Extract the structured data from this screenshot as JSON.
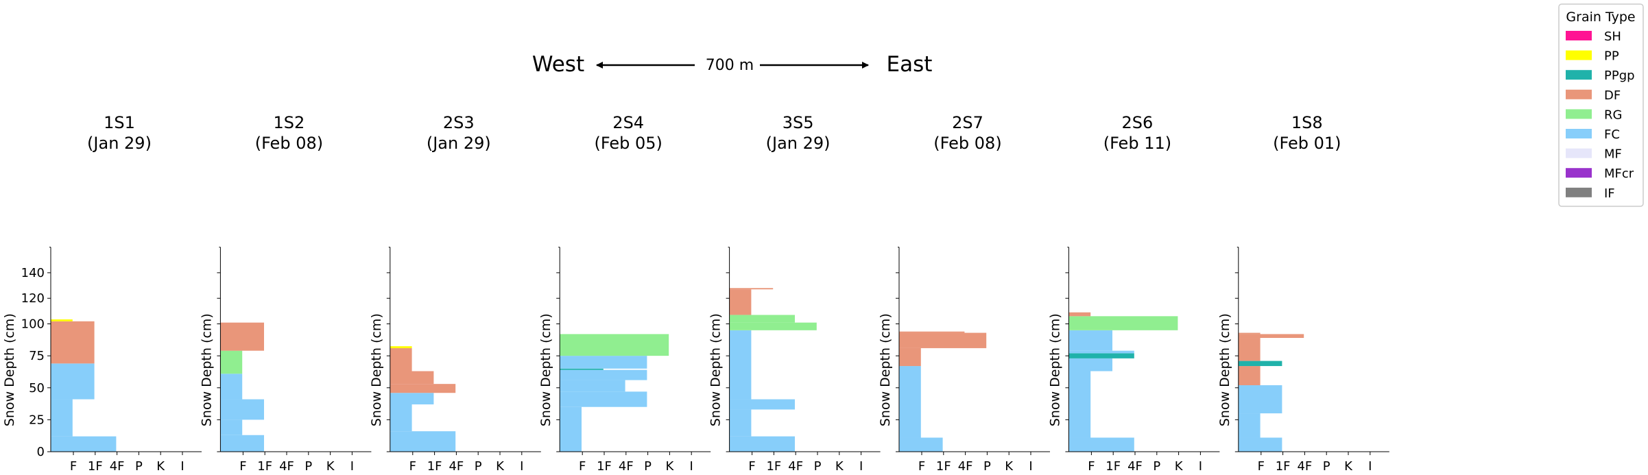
{
  "header": {
    "west": "West",
    "east": "East",
    "distance": "700 m"
  },
  "legend": {
    "title": "Grain Type",
    "items": [
      {
        "label": "SH",
        "color": "#FF1493"
      },
      {
        "label": "PP",
        "color": "#FFFF00"
      },
      {
        "label": "PPgp",
        "color": "#20B2AA"
      },
      {
        "label": "DF",
        "color": "#E9967A"
      },
      {
        "label": "RG",
        "color": "#90EE90"
      },
      {
        "label": "FC",
        "color": "#87CEFA"
      },
      {
        "label": "MF",
        "color": "#E6E6FA"
      },
      {
        "label": "MFcr",
        "color": "#9932CC"
      },
      {
        "label": "IF",
        "color": "#808080"
      }
    ]
  },
  "chart_data": {
    "type": "bar",
    "orientation": "horizontal",
    "ylabel": "Snow Depth (cm)",
    "ylim": [
      0,
      160
    ],
    "yticks": [
      0,
      25,
      50,
      75,
      100,
      120,
      140
    ],
    "xticks": [
      "F",
      "1F",
      "4F",
      "P",
      "K",
      "I"
    ],
    "hardness_scale": {
      "F": 1,
      "1F": 2,
      "4F": 3,
      "P": 4,
      "K": 5,
      "I": 6
    },
    "panels": [
      {
        "name": "1S1",
        "date": "(Jan 29)",
        "layers": [
          {
            "bottom": 0,
            "top": 12,
            "hardness": 3,
            "grain": "FC"
          },
          {
            "bottom": 12,
            "top": 41,
            "hardness": 1,
            "grain": "FC"
          },
          {
            "bottom": 41,
            "top": 69,
            "hardness": 2,
            "grain": "FC"
          },
          {
            "bottom": 69,
            "top": 102,
            "hardness": 2,
            "grain": "DF"
          },
          {
            "bottom": 102,
            "top": 103.5,
            "hardness": 1,
            "grain": "PP"
          }
        ]
      },
      {
        "name": "1S2",
        "date": "(Feb 08)",
        "layers": [
          {
            "bottom": 0,
            "top": 13,
            "hardness": 2,
            "grain": "FC"
          },
          {
            "bottom": 13,
            "top": 25,
            "hardness": 1,
            "grain": "FC"
          },
          {
            "bottom": 25,
            "top": 41,
            "hardness": 2,
            "grain": "FC"
          },
          {
            "bottom": 41,
            "top": 61,
            "hardness": 1,
            "grain": "FC"
          },
          {
            "bottom": 61,
            "top": 79,
            "hardness": 1,
            "grain": "RG"
          },
          {
            "bottom": 79,
            "top": 101,
            "hardness": 2,
            "grain": "DF"
          }
        ]
      },
      {
        "name": "2S3",
        "date": "(Jan 29)",
        "layers": [
          {
            "bottom": 0,
            "top": 16,
            "hardness": 3,
            "grain": "FC"
          },
          {
            "bottom": 16,
            "top": 37,
            "hardness": 1,
            "grain": "FC"
          },
          {
            "bottom": 37,
            "top": 46,
            "hardness": 2,
            "grain": "FC"
          },
          {
            "bottom": 46,
            "top": 53,
            "hardness": 3,
            "grain": "DF"
          },
          {
            "bottom": 53,
            "top": 63,
            "hardness": 2,
            "grain": "DF"
          },
          {
            "bottom": 63,
            "top": 81,
            "hardness": 1,
            "grain": "DF"
          },
          {
            "bottom": 81,
            "top": 82.5,
            "hardness": 1,
            "grain": "PP"
          }
        ]
      },
      {
        "name": "2S4",
        "date": "(Feb 05)",
        "layers": [
          {
            "bottom": 0,
            "top": 35,
            "hardness": 1,
            "grain": "FC"
          },
          {
            "bottom": 35,
            "top": 47,
            "hardness": 4,
            "grain": "FC"
          },
          {
            "bottom": 47,
            "top": 56,
            "hardness": 3,
            "grain": "FC"
          },
          {
            "bottom": 56,
            "top": 64,
            "hardness": 4,
            "grain": "FC"
          },
          {
            "bottom": 64,
            "top": 65,
            "hardness": 2,
            "grain": "PPgp"
          },
          {
            "bottom": 65,
            "top": 75,
            "hardness": 4,
            "grain": "FC"
          },
          {
            "bottom": 75,
            "top": 92,
            "hardness": 5,
            "grain": "RG"
          }
        ]
      },
      {
        "name": "3S5",
        "date": "(Jan 29)",
        "layers": [
          {
            "bottom": 0,
            "top": 12,
            "hardness": 3,
            "grain": "FC"
          },
          {
            "bottom": 12,
            "top": 33,
            "hardness": 1,
            "grain": "FC"
          },
          {
            "bottom": 33,
            "top": 41,
            "hardness": 3,
            "grain": "FC"
          },
          {
            "bottom": 41,
            "top": 95,
            "hardness": 1,
            "grain": "FC"
          },
          {
            "bottom": 95,
            "top": 101,
            "hardness": 4,
            "grain": "RG"
          },
          {
            "bottom": 101,
            "top": 107,
            "hardness": 3,
            "grain": "RG"
          },
          {
            "bottom": 107,
            "top": 127,
            "hardness": 1,
            "grain": "DF"
          },
          {
            "bottom": 127,
            "top": 128,
            "hardness": 2,
            "grain": "DF"
          }
        ]
      },
      {
        "name": "2S7",
        "date": "(Feb 08)",
        "layers": [
          {
            "bottom": 0,
            "top": 11,
            "hardness": 2,
            "grain": "FC"
          },
          {
            "bottom": 11,
            "top": 67,
            "hardness": 1,
            "grain": "FC"
          },
          {
            "bottom": 67,
            "top": 81,
            "hardness": 1,
            "grain": "DF"
          },
          {
            "bottom": 81,
            "top": 93,
            "hardness": 4,
            "grain": "DF"
          },
          {
            "bottom": 93,
            "top": 94,
            "hardness": 3,
            "grain": "DF"
          }
        ]
      },
      {
        "name": "2S6",
        "date": "(Feb 11)",
        "layers": [
          {
            "bottom": 0,
            "top": 11,
            "hardness": 3,
            "grain": "FC"
          },
          {
            "bottom": 11,
            "top": 63,
            "hardness": 1,
            "grain": "FC"
          },
          {
            "bottom": 63,
            "top": 73,
            "hardness": 2,
            "grain": "FC"
          },
          {
            "bottom": 73,
            "top": 77,
            "hardness": 3,
            "grain": "PPgp"
          },
          {
            "bottom": 77,
            "top": 79,
            "hardness": 3,
            "grain": "FC"
          },
          {
            "bottom": 79,
            "top": 95,
            "hardness": 2,
            "grain": "FC"
          },
          {
            "bottom": 95,
            "top": 106,
            "hardness": 5,
            "grain": "RG"
          },
          {
            "bottom": 106,
            "top": 109,
            "hardness": 1,
            "grain": "DF"
          }
        ]
      },
      {
        "name": "1S8",
        "date": "(Feb 01)",
        "layers": [
          {
            "bottom": 0,
            "top": 11,
            "hardness": 2,
            "grain": "FC"
          },
          {
            "bottom": 11,
            "top": 30,
            "hardness": 1,
            "grain": "FC"
          },
          {
            "bottom": 30,
            "top": 52,
            "hardness": 2,
            "grain": "FC"
          },
          {
            "bottom": 52,
            "top": 67,
            "hardness": 1,
            "grain": "DF"
          },
          {
            "bottom": 67,
            "top": 71,
            "hardness": 2,
            "grain": "PPgp"
          },
          {
            "bottom": 71,
            "top": 89,
            "hardness": 1,
            "grain": "DF"
          },
          {
            "bottom": 89,
            "top": 92,
            "hardness": 3,
            "grain": "DF"
          },
          {
            "bottom": 92,
            "top": 93,
            "hardness": 1,
            "grain": "DF"
          }
        ]
      }
    ]
  }
}
